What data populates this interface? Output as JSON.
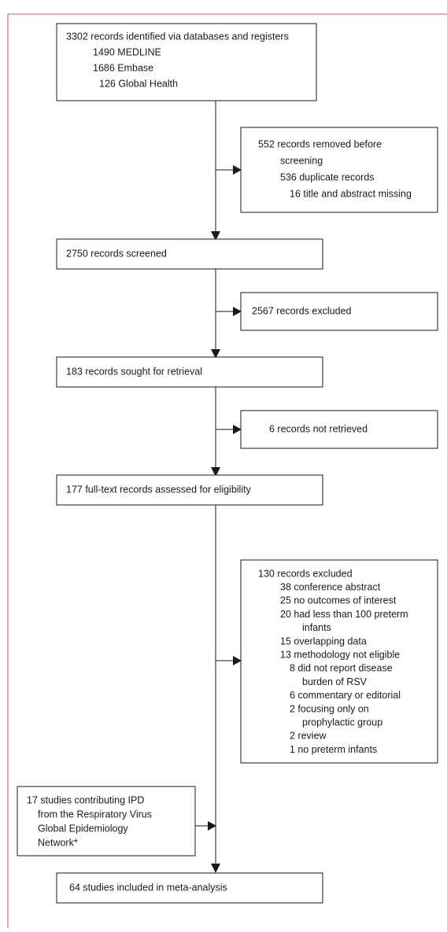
{
  "boxes": [
    {
      "lines": [
        "3302 records identified via databases and registers",
        "1490 MEDLINE",
        "1686 Embase",
        "126 Global Health"
      ]
    },
    {
      "lines": [
        "552 records removed before",
        "screening",
        "536 duplicate records",
        "16 title and abstract missing"
      ]
    },
    {
      "lines": [
        "2750 records screened"
      ]
    },
    {
      "lines": [
        "2567 records excluded"
      ]
    },
    {
      "lines": [
        "183 records sought for retrieval"
      ]
    },
    {
      "lines": [
        "6 records not retrieved"
      ]
    },
    {
      "lines": [
        "177 full-text records assessed for eligibility"
      ]
    },
    {
      "lines": [
        "130 records excluded",
        "38 conference abstract",
        "25 no outcomes of interest",
        "20 had less than 100 preterm",
        "infants",
        "15 overlapping data",
        "13 methodology not eligible",
        "8 did not report disease",
        "burden of RSV",
        "6 commentary or editorial",
        "2 focusing only on",
        "prophylactic group",
        "2 review",
        "1 no preterm infants"
      ]
    },
    {
      "lines": [
        "17 studies contributing IPD",
        "from the Respiratory Virus",
        "Global Epidemiology",
        "Network*"
      ]
    },
    {
      "lines": [
        "64 studies included in meta-analysis"
      ]
    }
  ]
}
